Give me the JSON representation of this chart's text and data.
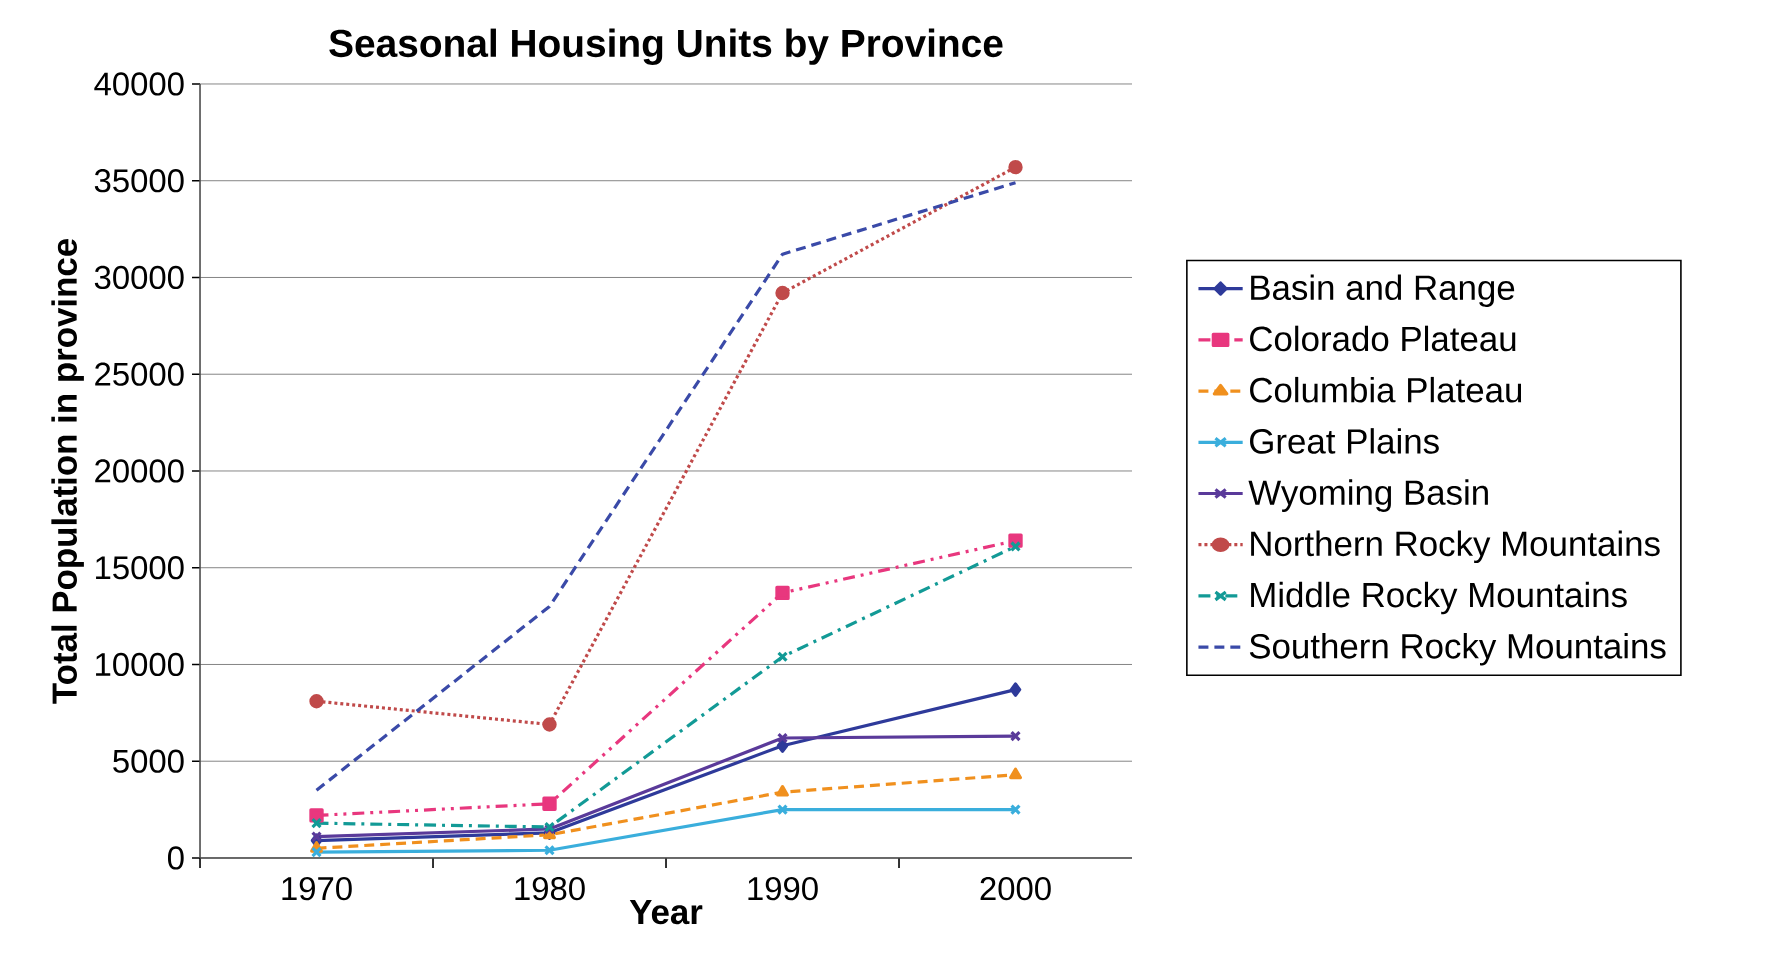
{
  "chart_data": {
    "type": "line",
    "title": "Seasonal Housing Units by Province",
    "xlabel": "Year",
    "ylabel": "Total Population in province",
    "categories": [
      "1970",
      "1980",
      "1990",
      "2000"
    ],
    "ylim": [
      0,
      40000
    ],
    "yticks": [
      0,
      5000,
      10000,
      15000,
      20000,
      25000,
      30000,
      35000,
      40000
    ],
    "grid": "y",
    "legend": "right",
    "series": [
      {
        "name": "Basin and Range",
        "color": "#2e3a9a",
        "marker": "diamond",
        "line_style": "solid",
        "values": [
          900,
          1300,
          5800,
          8700
        ]
      },
      {
        "name": "Colorado Plateau",
        "color": "#e8377e",
        "marker": "square",
        "line_style": "dashdotdot",
        "values": [
          2200,
          2800,
          13700,
          16400
        ]
      },
      {
        "name": "Columbia Plateau",
        "color": "#f0901e",
        "marker": "triangle",
        "line_style": "dashed",
        "values": [
          500,
          1200,
          3400,
          4300
        ]
      },
      {
        "name": "Great Plains",
        "color": "#3aaedc",
        "marker": "cross",
        "line_style": "solid",
        "values": [
          300,
          400,
          2500,
          2500
        ]
      },
      {
        "name": "Wyoming Basin",
        "color": "#5a3a9a",
        "marker": "cross",
        "line_style": "solid",
        "values": [
          1100,
          1500,
          6200,
          6300
        ]
      },
      {
        "name": "Northern Rocky Mountains",
        "color": "#c04a4a",
        "marker": "circle",
        "line_style": "dotted",
        "values": [
          8100,
          6900,
          29200,
          35700
        ]
      },
      {
        "name": "Middle Rocky Mountains",
        "color": "#129a96",
        "marker": "cross",
        "line_style": "dashdot",
        "values": [
          1800,
          1600,
          10400,
          16100
        ]
      },
      {
        "name": "Southern Rocky Mountains",
        "color": "#3a4aa8",
        "marker": "none",
        "line_style": "dashed",
        "values": [
          3500,
          13000,
          31200,
          34900
        ]
      }
    ]
  }
}
